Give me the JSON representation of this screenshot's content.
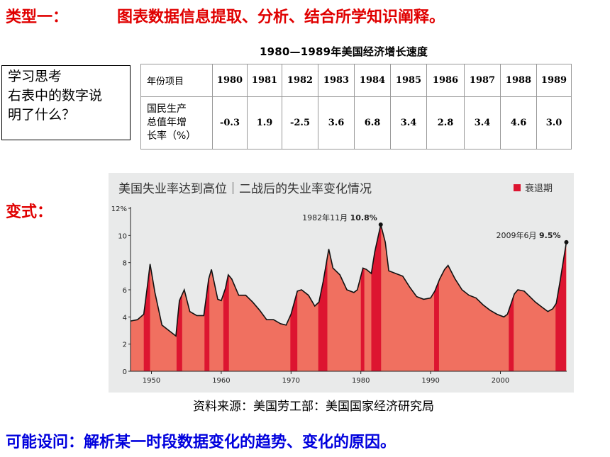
{
  "header": {
    "type_label": "类型一：",
    "title": "图表数据信息提取、分析、结合所学知识阐释。"
  },
  "gdp_table": {
    "title": "1980—1989年美国经济增长速度",
    "row1_header": "年份项目",
    "row2_header": [
      "国民生产",
      "总值年增",
      "长率（%）"
    ],
    "years": [
      "1980",
      "1981",
      "1982",
      "1983",
      "1984",
      "1985",
      "1986",
      "1987",
      "1988",
      "1989"
    ],
    "values": [
      "-0.3",
      "1.9",
      "-2.5",
      "3.6",
      "6.8",
      "3.4",
      "2.8",
      "3.4",
      "4.6",
      "3.0"
    ]
  },
  "think_box": {
    "lines": [
      "学习思考",
      "右表中的数字说",
      "明了什么？"
    ]
  },
  "variant_label": "变式：",
  "chart_data": {
    "type": "area",
    "title": "美国失业率达到高位｜二战后的失业率变化情况",
    "legend": "衰退期",
    "ylabel": "",
    "xlabel": "",
    "y_ticks": [
      "12%",
      "10",
      "8",
      "6",
      "4",
      "2",
      "0"
    ],
    "x_ticks": [
      "1950",
      "1960",
      "1970",
      "1980",
      "1990",
      "2000"
    ],
    "ylim": [
      0,
      12
    ],
    "xlim": [
      1947,
      2009.5
    ],
    "colors": {
      "area": "#f07060",
      "recession": "#dd1530",
      "line": "#111111",
      "background": "#e9eaea"
    },
    "annotations": [
      {
        "text_date": "1982年11月",
        "text_value": "10.8%",
        "x": 1982.85,
        "y": 10.8
      },
      {
        "text_date": "2009年6月",
        "text_value": "9.5%",
        "x": 2009.45,
        "y": 9.5
      }
    ],
    "recessions": [
      [
        1948.9,
        1949.8
      ],
      [
        1953.6,
        1954.4
      ],
      [
        1957.6,
        1958.3
      ],
      [
        1960.3,
        1961.1
      ],
      [
        1969.9,
        1970.9
      ],
      [
        1973.9,
        1975.2
      ],
      [
        1980.0,
        1980.5
      ],
      [
        1981.5,
        1982.9
      ],
      [
        1990.5,
        1991.2
      ],
      [
        2001.2,
        2001.9
      ],
      [
        2007.9,
        2009.4
      ]
    ],
    "series": [
      {
        "x": [
          1947.0,
          1948.0,
          1948.9,
          1949.4,
          1949.8,
          1950.5,
          1951.5,
          1952.5,
          1953.5,
          1954.0,
          1954.7,
          1955.5,
          1956.5,
          1957.5,
          1958.2,
          1958.6,
          1959.5,
          1960.0,
          1960.6,
          1961.0,
          1961.5,
          1962.5,
          1963.5,
          1964.5,
          1965.5,
          1966.5,
          1967.5,
          1968.5,
          1969.3,
          1970.0,
          1970.9,
          1971.5,
          1972.5,
          1973.4,
          1974.0,
          1974.6,
          1975.4,
          1976.0,
          1977.0,
          1978.0,
          1979.0,
          1979.5,
          1980.3,
          1980.8,
          1981.5,
          1982.0,
          1982.85,
          1983.5,
          1984.0,
          1985.0,
          1986.0,
          1987.0,
          1988.0,
          1989.0,
          1990.0,
          1990.6,
          1991.3,
          1992.0,
          1992.5,
          1993.5,
          1994.5,
          1995.5,
          1996.5,
          1997.5,
          1998.5,
          1999.5,
          2000.5,
          2001.0,
          2001.6,
          2002.0,
          2002.5,
          2003.4,
          2004.0,
          2005.0,
          2006.0,
          2006.8,
          2007.5,
          2008.0,
          2008.5,
          2009.0,
          2009.45
        ],
        "values": [
          3.7,
          3.8,
          4.2,
          6.2,
          7.9,
          5.8,
          3.4,
          3.0,
          2.6,
          5.2,
          6.0,
          4.4,
          4.1,
          4.1,
          6.8,
          7.5,
          5.3,
          5.2,
          6.1,
          7.1,
          6.8,
          5.6,
          5.6,
          5.1,
          4.5,
          3.8,
          3.8,
          3.5,
          3.4,
          4.2,
          5.9,
          6.0,
          5.6,
          4.8,
          5.1,
          6.6,
          9.0,
          7.6,
          7.1,
          6.0,
          5.8,
          6.0,
          7.6,
          7.5,
          7.2,
          8.8,
          10.8,
          9.5,
          7.4,
          7.2,
          7.0,
          6.2,
          5.5,
          5.3,
          5.4,
          5.9,
          6.8,
          7.5,
          7.8,
          6.8,
          6.0,
          5.6,
          5.4,
          4.9,
          4.5,
          4.2,
          4.0,
          4.2,
          5.1,
          5.7,
          6.0,
          5.9,
          5.6,
          5.1,
          4.7,
          4.4,
          4.6,
          5.0,
          6.5,
          8.1,
          9.5
        ]
      }
    ]
  },
  "source_note": "资料来源：美国劳工部：美国国家经济研究局",
  "question": "可能设问：解析某一时段数据变化的趋势、变化的原因。"
}
